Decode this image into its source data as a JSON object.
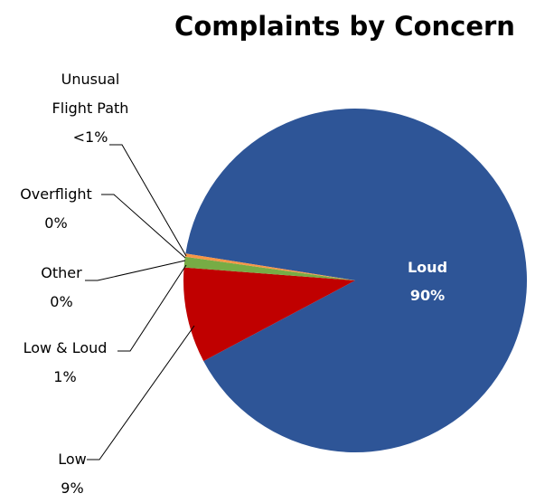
{
  "chart_data": {
    "type": "pie",
    "title": "Complaints by Concern",
    "categories": [
      "Loud",
      "Low",
      "Low & Loud",
      "Other",
      "Overflight",
      "Unusual Flight Path"
    ],
    "values": [
      90,
      9,
      1,
      0,
      0,
      0.3
    ],
    "value_labels": [
      "90%",
      "9%",
      "1%",
      "0%",
      "0%",
      "<1%"
    ],
    "colors": [
      "#2e5597",
      "#c00000",
      "#77ac45",
      "#7f6aa2",
      "#4bacc6",
      "#f79646"
    ]
  }
}
